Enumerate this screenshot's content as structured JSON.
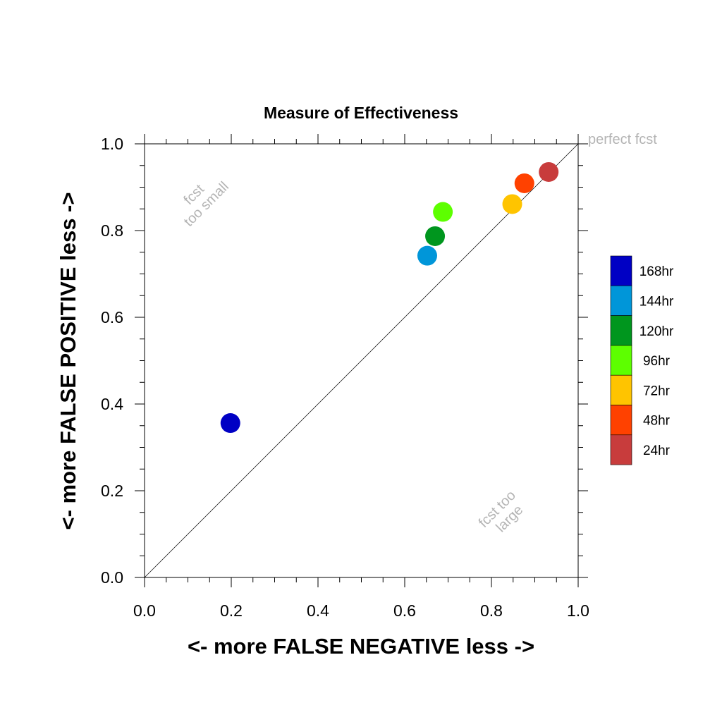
{
  "chart_data": {
    "type": "scatter",
    "title": "Measure of Effectiveness",
    "xlabel": "<- more   FALSE NEGATIVE   less ->",
    "ylabel": "<- more   FALSE POSITIVE   less ->",
    "xlim": [
      0,
      1
    ],
    "ylim": [
      0,
      1
    ],
    "x_ticks": [
      "0.0",
      "0.2",
      "0.4",
      "0.6",
      "0.8",
      "1.0"
    ],
    "y_ticks": [
      "0.0",
      "0.2",
      "0.4",
      "0.6",
      "0.8",
      "1.0"
    ],
    "grid": false,
    "legend_position": "right",
    "reference_line": {
      "from": [
        0,
        0
      ],
      "to": [
        1,
        1
      ]
    },
    "annotations": {
      "perfect": "perfect fcst",
      "too_small": [
        "fcst",
        "too small"
      ],
      "too_large": [
        "fcst too",
        "large"
      ]
    },
    "series": [
      {
        "name": "168hr",
        "x": 0.198,
        "y": 0.356,
        "color": "#0000c4"
      },
      {
        "name": "144hr",
        "x": 0.652,
        "y": 0.742,
        "color": "#0096d9"
      },
      {
        "name": "120hr",
        "x": 0.67,
        "y": 0.787,
        "color": "#00961e"
      },
      {
        "name": "96hr",
        "x": 0.688,
        "y": 0.843,
        "color": "#5dff00"
      },
      {
        "name": "72hr",
        "x": 0.848,
        "y": 0.861,
        "color": "#ffc400"
      },
      {
        "name": "48hr",
        "x": 0.876,
        "y": 0.909,
        "color": "#ff4100"
      },
      {
        "name": "24hr",
        "x": 0.932,
        "y": 0.935,
        "color": "#c83c3c"
      }
    ]
  }
}
